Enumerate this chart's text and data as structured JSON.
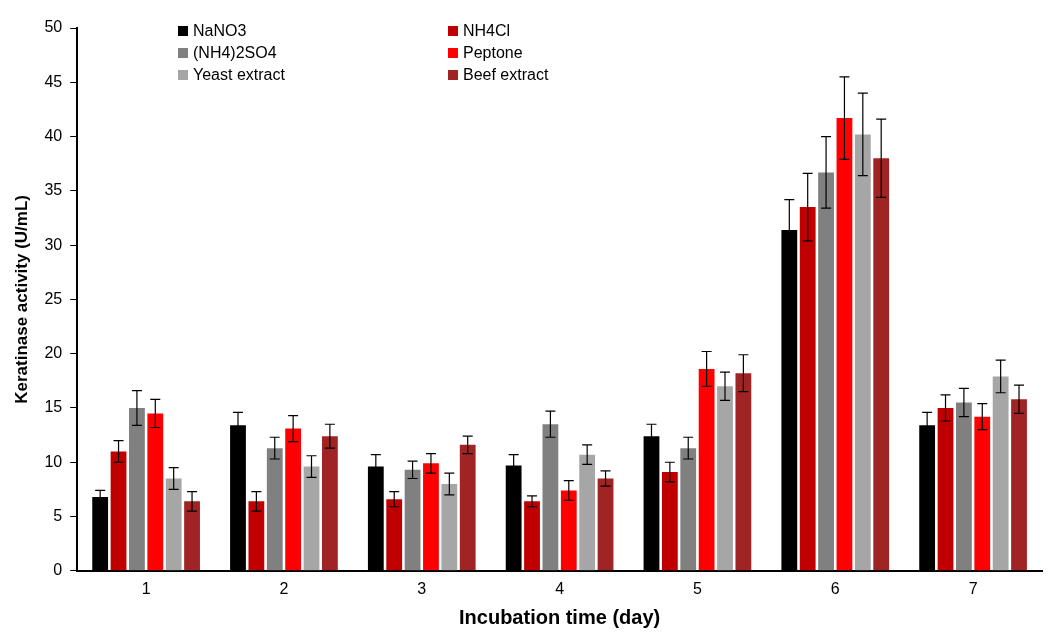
{
  "chart_data": {
    "type": "bar",
    "xlabel": "Incubation time (day)",
    "ylabel": "Keratinase activity (U/mL)",
    "categories": [
      "1",
      "2",
      "3",
      "4",
      "5",
      "6",
      "7"
    ],
    "series": [
      {
        "name": "NaNO3",
        "color": "#000000",
        "values": [
          6.8,
          13.4,
          9.6,
          9.7,
          12.4,
          31.4,
          13.4
        ],
        "errors": [
          0.6,
          1.2,
          1.1,
          1.0,
          1.1,
          2.8,
          1.2
        ]
      },
      {
        "name": "NH4Cl",
        "color": "#c00000",
        "values": [
          11.0,
          6.4,
          6.6,
          6.4,
          9.1,
          33.5,
          15.0
        ],
        "errors": [
          1.0,
          0.9,
          0.7,
          0.5,
          0.9,
          3.1,
          1.2
        ]
      },
      {
        "name": "(NH4)2SO4",
        "color": "#808080",
        "values": [
          15.0,
          11.3,
          9.3,
          13.5,
          11.3,
          36.7,
          15.5
        ],
        "errors": [
          1.6,
          1.0,
          0.8,
          1.2,
          1.0,
          3.3,
          1.3
        ]
      },
      {
        "name": "Peptone",
        "color": "#ff0000",
        "values": [
          14.5,
          13.1,
          9.9,
          7.4,
          18.6,
          41.7,
          14.2
        ],
        "errors": [
          1.3,
          1.2,
          0.9,
          0.9,
          1.6,
          3.8,
          1.2
        ]
      },
      {
        "name": "Yeast extract",
        "color": "#a6a6a6",
        "values": [
          8.5,
          9.6,
          8.0,
          10.7,
          17.0,
          40.2,
          17.9
        ],
        "errors": [
          1.0,
          1.0,
          1.0,
          0.9,
          1.3,
          3.8,
          1.5
        ]
      },
      {
        "name": "Beef extract",
        "color": "#a02424",
        "values": [
          6.4,
          12.4,
          11.6,
          8.5,
          18.2,
          38.0,
          15.8
        ],
        "errors": [
          0.9,
          1.1,
          0.8,
          0.7,
          1.7,
          3.6,
          1.3
        ]
      }
    ],
    "ylim": [
      0,
      50
    ],
    "yticks": [
      0,
      5,
      10,
      15,
      20,
      25,
      30,
      35,
      40,
      45,
      50
    ],
    "grid": false,
    "legend": "top left"
  }
}
